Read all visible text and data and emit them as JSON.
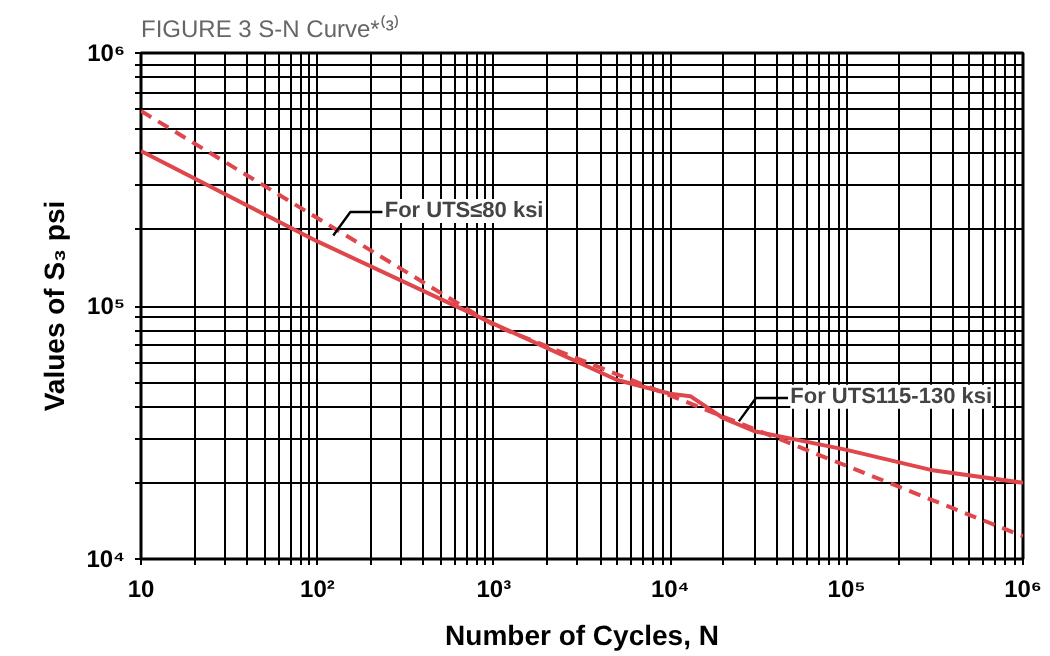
{
  "chart_data": {
    "type": "line",
    "title": "FIGURE 3 S-N Curve*⁽³⁾",
    "xlabel": "Number of Cycles, N",
    "ylabel": "Values of S₃ psi",
    "log": "xy",
    "grid": true,
    "marker": "none",
    "xlim": [
      10,
      1000000
    ],
    "ylim": [
      10000,
      1000000
    ],
    "xticks": [
      {
        "value": 10,
        "label": "10"
      },
      {
        "value": 20,
        "label": null
      },
      {
        "value": 30,
        "label": null
      },
      {
        "value": 40,
        "label": null
      },
      {
        "value": 50,
        "label": null
      },
      {
        "value": 60,
        "label": null
      },
      {
        "value": 70,
        "label": null
      },
      {
        "value": 80,
        "label": null
      },
      {
        "value": 90,
        "label": null
      },
      {
        "value": 100,
        "label": "10²"
      },
      {
        "value": 200,
        "label": null
      },
      {
        "value": 300,
        "label": null
      },
      {
        "value": 400,
        "label": null
      },
      {
        "value": 500,
        "label": null
      },
      {
        "value": 600,
        "label": null
      },
      {
        "value": 700,
        "label": null
      },
      {
        "value": 800,
        "label": null
      },
      {
        "value": 900,
        "label": null
      },
      {
        "value": 1000,
        "label": "10³"
      },
      {
        "value": 2000,
        "label": null
      },
      {
        "value": 3000,
        "label": null
      },
      {
        "value": 4000,
        "label": null
      },
      {
        "value": 5000,
        "label": null
      },
      {
        "value": 6000,
        "label": null
      },
      {
        "value": 7000,
        "label": null
      },
      {
        "value": 8000,
        "label": null
      },
      {
        "value": 9000,
        "label": null
      },
      {
        "value": 10000,
        "label": "10⁴"
      },
      {
        "value": 20000,
        "label": null
      },
      {
        "value": 30000,
        "label": null
      },
      {
        "value": 40000,
        "label": null
      },
      {
        "value": 50000,
        "label": null
      },
      {
        "value": 60000,
        "label": null
      },
      {
        "value": 70000,
        "label": null
      },
      {
        "value": 80000,
        "label": null
      },
      {
        "value": 90000,
        "label": null
      },
      {
        "value": 100000,
        "label": "10⁵"
      },
      {
        "value": 200000,
        "label": null
      },
      {
        "value": 300000,
        "label": null
      },
      {
        "value": 400000,
        "label": null
      },
      {
        "value": 500000,
        "label": null
      },
      {
        "value": 600000,
        "label": null
      },
      {
        "value": 700000,
        "label": null
      },
      {
        "value": 800000,
        "label": null
      },
      {
        "value": 900000,
        "label": null
      },
      {
        "value": 1000000,
        "label": "10⁶"
      }
    ],
    "yticks": [
      {
        "value": 10000,
        "label": "10⁴"
      },
      {
        "value": 20000,
        "label": null
      },
      {
        "value": 30000,
        "label": null
      },
      {
        "value": 40000,
        "label": null
      },
      {
        "value": 50000,
        "label": null
      },
      {
        "value": 60000,
        "label": null
      },
      {
        "value": 70000,
        "label": null
      },
      {
        "value": 80000,
        "label": null
      },
      {
        "value": 90000,
        "label": null
      },
      {
        "value": 100000,
        "label": "10⁵"
      },
      {
        "value": 200000,
        "label": null
      },
      {
        "value": 300000,
        "label": null
      },
      {
        "value": 400000,
        "label": null
      },
      {
        "value": 500000,
        "label": null
      },
      {
        "value": 600000,
        "label": null
      },
      {
        "value": 700000,
        "label": null
      },
      {
        "value": 800000,
        "label": null
      },
      {
        "value": 900000,
        "label": null
      },
      {
        "value": 1000000,
        "label": "10⁶"
      }
    ],
    "series": [
      {
        "color": "#e0474c",
        "line_style": "solid",
        "x": [
          10,
          100,
          1000,
          5000,
          10000,
          13000,
          20000,
          30000,
          100000,
          300000,
          1000000
        ],
        "values": [
          410000,
          180000,
          85000,
          51000,
          45000,
          44000,
          36000,
          32000,
          27000,
          22500,
          20000
        ]
      },
      {
        "color": "#e0474c",
        "line_style": "dashed",
        "x": [
          10,
          1000,
          1000000
        ],
        "values": [
          590000,
          84000,
          12300
        ]
      }
    ],
    "annotations": [
      {
        "text": "For UTS≤80 ksi",
        "x": 123,
        "y": 190000
      },
      {
        "text": "For UTS115-130 ksi",
        "x": 24500,
        "y": 35000
      }
    ]
  }
}
